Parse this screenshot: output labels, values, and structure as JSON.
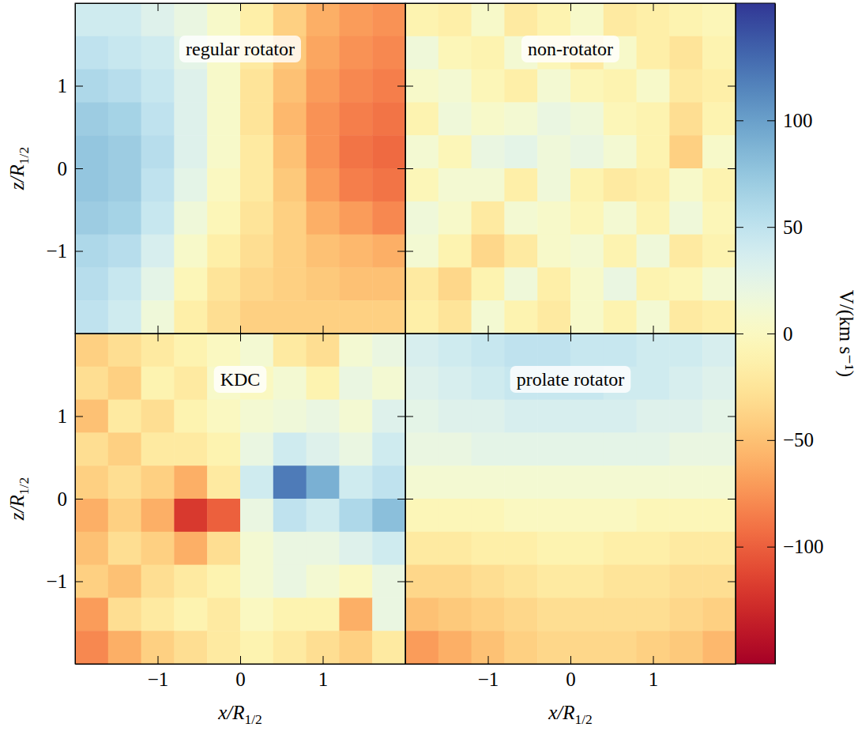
{
  "chart_data": {
    "type": "heatmap",
    "xlim": [
      -2,
      2
    ],
    "ylim": [
      -2,
      2
    ],
    "xticks": [
      -1,
      0,
      1
    ],
    "yticks": [
      -1,
      0,
      1
    ],
    "x": [
      -1.8,
      -1.4,
      -1.0,
      -0.6,
      -0.2,
      0.2,
      0.6,
      1.0,
      1.4,
      1.8
    ],
    "y": [
      1.8,
      1.4,
      1.0,
      0.6,
      0.2,
      -0.2,
      -0.6,
      -1.0,
      -1.4,
      -1.8
    ],
    "colorbar": {
      "range": [
        -155,
        155
      ],
      "ticks": [
        -100,
        -50,
        0,
        50,
        100
      ],
      "label": "V/(km s⁻¹)"
    },
    "panels": [
      {
        "title": "regular rotator",
        "ylabel": "z/R1/2",
        "tick_labels": "y",
        "values": [
          [
            40,
            40,
            30,
            20,
            5,
            -15,
            -40,
            -60,
            -70,
            -75
          ],
          [
            50,
            45,
            40,
            25,
            5,
            -20,
            -45,
            -65,
            -75,
            -80
          ],
          [
            60,
            55,
            45,
            30,
            5,
            -25,
            -50,
            -70,
            -80,
            -85
          ],
          [
            70,
            65,
            50,
            30,
            5,
            -25,
            -55,
            -75,
            -85,
            -90
          ],
          [
            75,
            70,
            55,
            30,
            5,
            -20,
            -50,
            -75,
            -90,
            -95
          ],
          [
            75,
            70,
            50,
            25,
            0,
            -20,
            -45,
            -70,
            -85,
            -90
          ],
          [
            70,
            65,
            45,
            15,
            -5,
            -25,
            -40,
            -60,
            -70,
            -80
          ],
          [
            60,
            55,
            35,
            5,
            -15,
            -30,
            -40,
            -50,
            -55,
            -60
          ],
          [
            55,
            45,
            25,
            -5,
            -25,
            -35,
            -40,
            -45,
            -50,
            -50
          ],
          [
            50,
            40,
            15,
            -15,
            -30,
            -40,
            -40,
            -40,
            -40,
            -40
          ]
        ]
      },
      {
        "title": "non-rotator",
        "tick_labels": false,
        "values": [
          [
            -10,
            -15,
            5,
            -20,
            -10,
            5,
            -20,
            -15,
            -10,
            -5
          ],
          [
            15,
            -5,
            -10,
            10,
            -5,
            -20,
            5,
            -15,
            -25,
            -10
          ],
          [
            5,
            10,
            -5,
            -15,
            10,
            -5,
            -10,
            5,
            -20,
            -15
          ],
          [
            -10,
            15,
            5,
            10,
            20,
            15,
            -5,
            -10,
            -30,
            -10
          ],
          [
            10,
            -5,
            20,
            25,
            15,
            20,
            10,
            -10,
            -40,
            5
          ],
          [
            -5,
            10,
            10,
            -15,
            15,
            -10,
            -20,
            -15,
            5,
            -10
          ],
          [
            15,
            5,
            -20,
            10,
            5,
            -5,
            10,
            -10,
            15,
            -5
          ],
          [
            10,
            -10,
            -35,
            -20,
            5,
            10,
            -10,
            15,
            -20,
            -10
          ],
          [
            -20,
            -35,
            -10,
            15,
            -15,
            5,
            20,
            -10,
            -5,
            10
          ],
          [
            -15,
            -25,
            10,
            -10,
            -20,
            5,
            -10,
            10,
            -20,
            -15
          ]
        ]
      },
      {
        "title": "KDC",
        "xlabel": "x/R1/2",
        "ylabel": "z/R1/2",
        "tick_labels": true,
        "values": [
          [
            -40,
            -30,
            -20,
            -10,
            0,
            10,
            -20,
            -30,
            10,
            20
          ],
          [
            -30,
            -40,
            -10,
            -20,
            5,
            0,
            10,
            -10,
            20,
            10
          ],
          [
            -50,
            -20,
            -30,
            -10,
            0,
            10,
            15,
            20,
            10,
            30
          ],
          [
            -30,
            -40,
            -20,
            -20,
            -10,
            20,
            40,
            30,
            20,
            40
          ],
          [
            -40,
            -30,
            -40,
            -60,
            -20,
            40,
            120,
            90,
            40,
            50
          ],
          [
            -60,
            -40,
            -60,
            -120,
            -100,
            20,
            50,
            40,
            60,
            80
          ],
          [
            -50,
            -30,
            -40,
            -60,
            -30,
            10,
            20,
            20,
            30,
            40
          ],
          [
            -40,
            -50,
            -30,
            -20,
            -10,
            10,
            20,
            10,
            0,
            20
          ],
          [
            -70,
            -30,
            -20,
            -10,
            -20,
            0,
            -10,
            -10,
            -60,
            20
          ],
          [
            -80,
            -60,
            -40,
            -30,
            -20,
            -10,
            -20,
            -30,
            -40,
            -20
          ]
        ]
      },
      {
        "title": "prolate rotator",
        "xlabel": "x/R1/2",
        "tick_labels": "x",
        "values": [
          [
            35,
            40,
            45,
            50,
            50,
            45,
            45,
            40,
            40,
            35
          ],
          [
            30,
            35,
            40,
            45,
            45,
            45,
            40,
            40,
            35,
            30
          ],
          [
            25,
            30,
            30,
            35,
            35,
            35,
            35,
            30,
            30,
            25
          ],
          [
            20,
            20,
            25,
            25,
            25,
            25,
            25,
            25,
            20,
            20
          ],
          [
            10,
            10,
            10,
            10,
            10,
            10,
            10,
            10,
            10,
            10
          ],
          [
            -5,
            -5,
            -5,
            0,
            0,
            0,
            0,
            -5,
            -5,
            -5
          ],
          [
            -20,
            -20,
            -15,
            -15,
            -10,
            -10,
            -15,
            -15,
            -20,
            -20
          ],
          [
            -35,
            -35,
            -30,
            -25,
            -20,
            -20,
            -25,
            -25,
            -30,
            -30
          ],
          [
            -50,
            -45,
            -40,
            -35,
            -30,
            -30,
            -30,
            -30,
            -35,
            -40
          ],
          [
            -70,
            -60,
            -50,
            -40,
            -35,
            -35,
            -35,
            -40,
            -45,
            -55
          ]
        ]
      }
    ]
  }
}
